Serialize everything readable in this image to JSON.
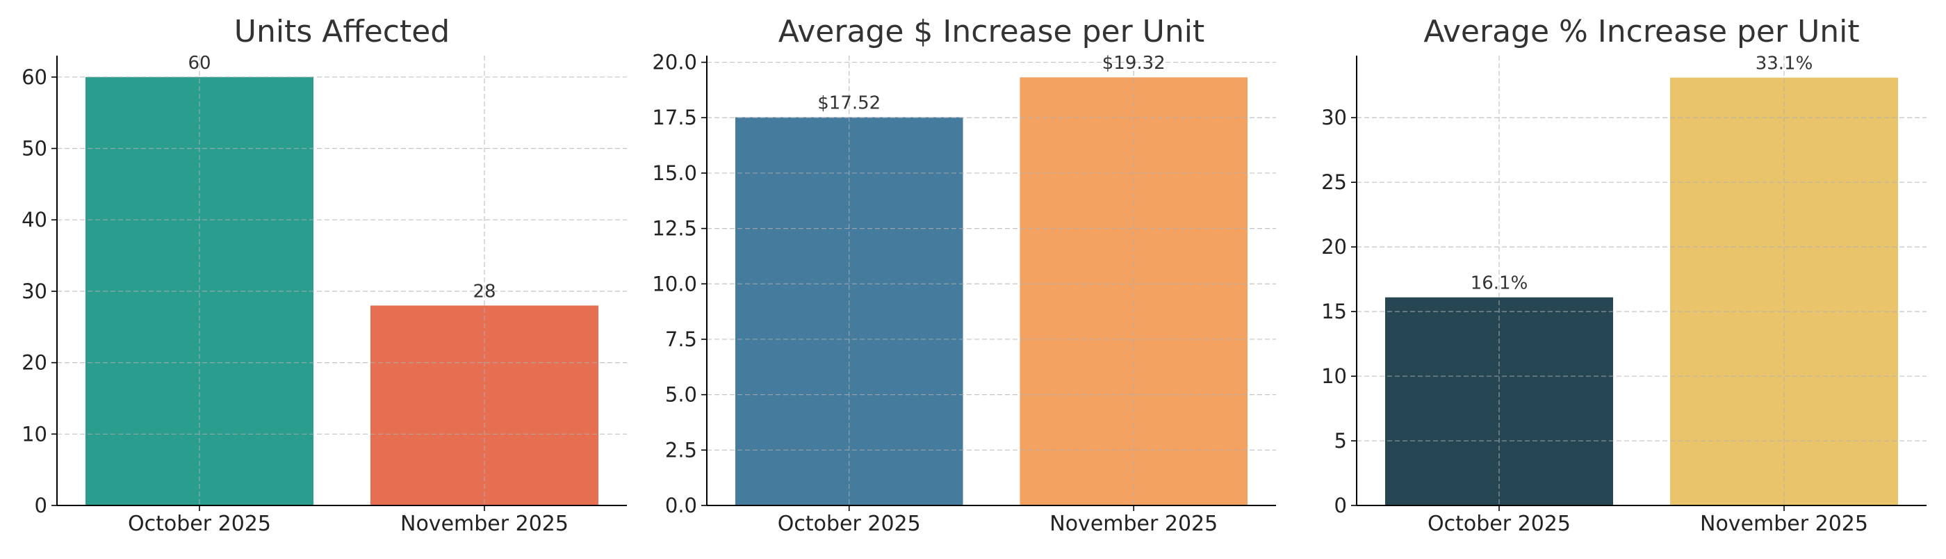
{
  "chart_data": [
    {
      "type": "bar",
      "title": "Units Affected",
      "xlabel": "",
      "ylabel": "",
      "categories": [
        "October 2025",
        "November 2025"
      ],
      "values": [
        60,
        28
      ],
      "data_labels": [
        "60",
        "28"
      ],
      "ylim": [
        0,
        63
      ],
      "yticks": [
        0,
        10,
        20,
        30,
        40,
        50,
        60
      ],
      "ytick_labels": [
        "0",
        "10",
        "20",
        "30",
        "40",
        "50",
        "60"
      ],
      "colors": [
        "#2a9d8f",
        "#e76f51"
      ],
      "grid": true,
      "legend": "none"
    },
    {
      "type": "bar",
      "title": "Average $ Increase per Unit",
      "xlabel": "",
      "ylabel": "",
      "categories": [
        "October 2025",
        "November 2025"
      ],
      "values": [
        17.52,
        19.32
      ],
      "data_labels": [
        "$17.52",
        "$19.32"
      ],
      "ylim": [
        0,
        20.3
      ],
      "yticks": [
        0,
        2.5,
        5,
        7.5,
        10,
        12.5,
        15,
        17.5,
        20
      ],
      "ytick_labels": [
        "0.0",
        "2.5",
        "5.0",
        "7.5",
        "10.0",
        "12.5",
        "15.0",
        "17.5",
        "20.0"
      ],
      "colors": [
        "#457b9d",
        "#f4a261"
      ],
      "grid": true,
      "legend": "none"
    },
    {
      "type": "bar",
      "title": "Average % Increase per Unit",
      "xlabel": "",
      "ylabel": "",
      "categories": [
        "October 2025",
        "November 2025"
      ],
      "values": [
        16.1,
        33.1
      ],
      "data_labels": [
        "16.1%",
        "33.1%"
      ],
      "ylim": [
        0,
        34.8
      ],
      "yticks": [
        0,
        5,
        10,
        15,
        20,
        25,
        30
      ],
      "ytick_labels": [
        "0",
        "5",
        "10",
        "15",
        "20",
        "25",
        "30"
      ],
      "colors": [
        "#264653",
        "#e9c46a"
      ],
      "grid": true,
      "legend": "none"
    }
  ]
}
